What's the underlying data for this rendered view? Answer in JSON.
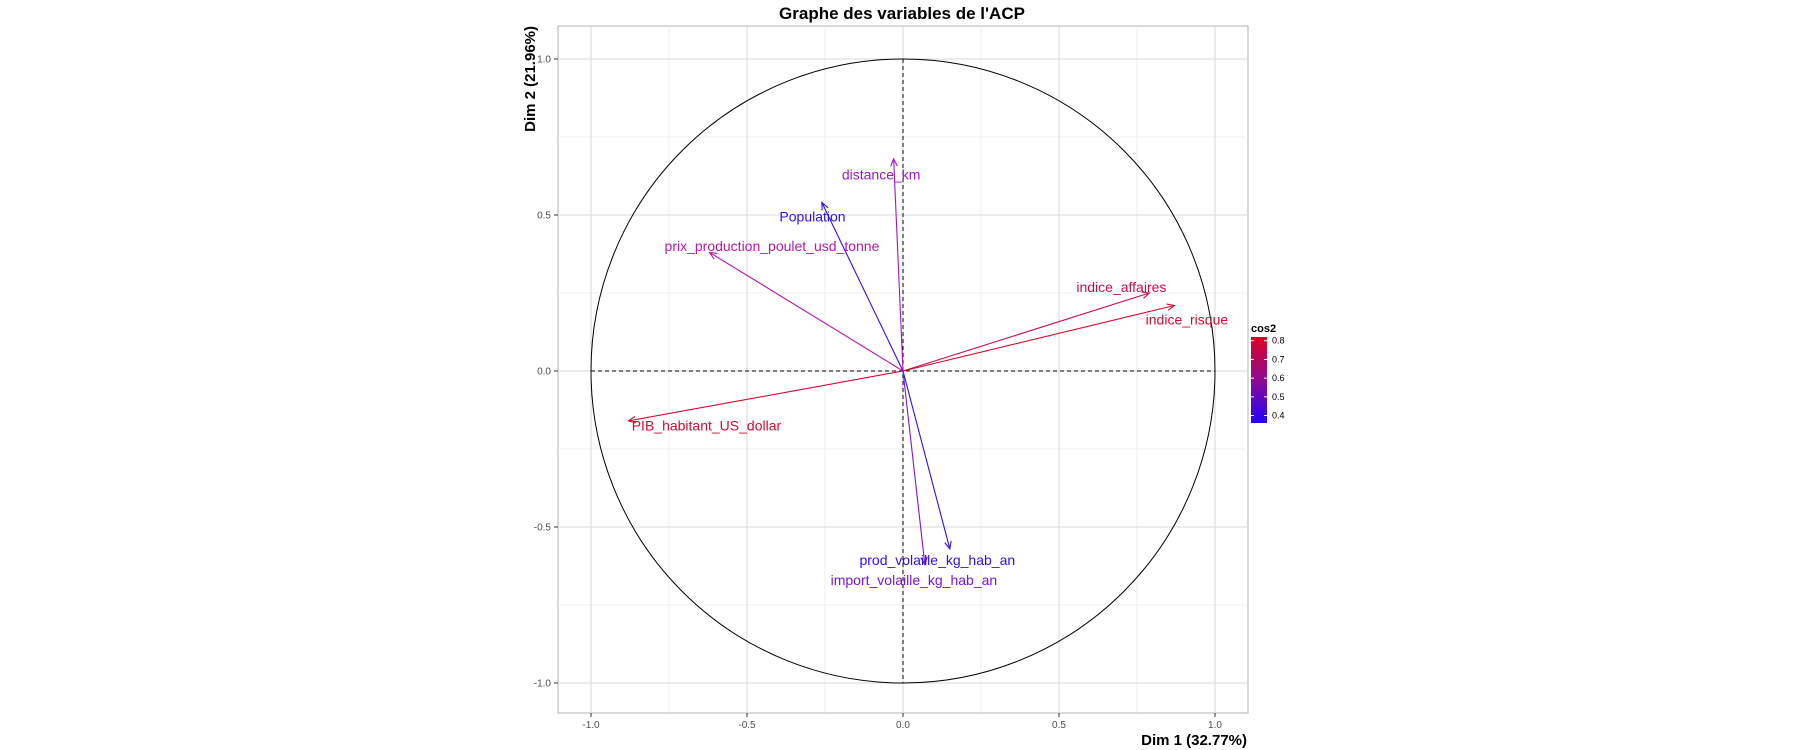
{
  "chart_data": {
    "type": "scatter",
    "title": "Graphe des variables de l'ACP",
    "xlabel": "Dim 1 (32.77%)",
    "ylabel": "Dim 2 (21.96%)",
    "xlim": [
      -1.1,
      1.1
    ],
    "ylim": [
      -1.1,
      1.1
    ],
    "xticks": [
      "-1.0",
      "-0.5",
      "0.0",
      "0.5",
      "1.0"
    ],
    "yticks": [
      "-1.0",
      "-0.5",
      "0.0",
      "0.5",
      "1.0"
    ],
    "xtick_values": [
      -1.0,
      -0.5,
      0.0,
      0.5,
      1.0
    ],
    "ytick_values": [
      -1.0,
      -0.5,
      0.0,
      0.5,
      1.0
    ],
    "grid": true,
    "unit_circle": true,
    "reference_lines": "dashed",
    "legend": {
      "title": "cos2",
      "position": "right",
      "ticks": [
        "0.8",
        "0.7",
        "0.6",
        "0.5",
        "0.4"
      ],
      "tick_values": [
        0.8,
        0.7,
        0.6,
        0.5,
        0.4
      ],
      "range": [
        0.36,
        0.82
      ],
      "color_low": "#2200ff",
      "color_high": "#dd0022"
    },
    "variables": [
      {
        "name": "indice_affaires",
        "x": 0.79,
        "y": 0.25,
        "color": "#c8104a",
        "label_x": 0.7,
        "label_y": 0.27,
        "anchor": "middle"
      },
      {
        "name": "indice_risque",
        "x": 0.87,
        "y": 0.21,
        "color": "#d40a30",
        "label_x": 0.91,
        "label_y": 0.165,
        "anchor": "middle"
      },
      {
        "name": "PIB_habitant_US_dollar",
        "x": -0.88,
        "y": -0.16,
        "color": "#d40a30",
        "label_x": -0.63,
        "label_y": -0.175,
        "anchor": "middle"
      },
      {
        "name": "prix_production_poulet_usd_tonne",
        "x": -0.62,
        "y": 0.38,
        "color": "#b41aa8",
        "label_x": -0.42,
        "label_y": 0.4,
        "anchor": "middle"
      },
      {
        "name": "distance_km",
        "x": -0.03,
        "y": 0.68,
        "color": "#a018c8",
        "label_x": -0.07,
        "label_y": 0.63,
        "anchor": "middle"
      },
      {
        "name": "Population",
        "x": -0.26,
        "y": 0.54,
        "color": "#2a10f0",
        "label_x": -0.29,
        "label_y": 0.495,
        "anchor": "middle"
      },
      {
        "name": "prod_volaille_kg_hab_an",
        "x": 0.15,
        "y": -0.57,
        "color": "#2a10f0",
        "label_x": 0.11,
        "label_y": -0.605,
        "anchor": "middle"
      },
      {
        "name": "import_volaille_kg_hab_an",
        "x": 0.07,
        "y": -0.62,
        "color": "#7a14dc",
        "label_x": 0.035,
        "label_y": -0.67,
        "anchor": "middle"
      }
    ]
  }
}
